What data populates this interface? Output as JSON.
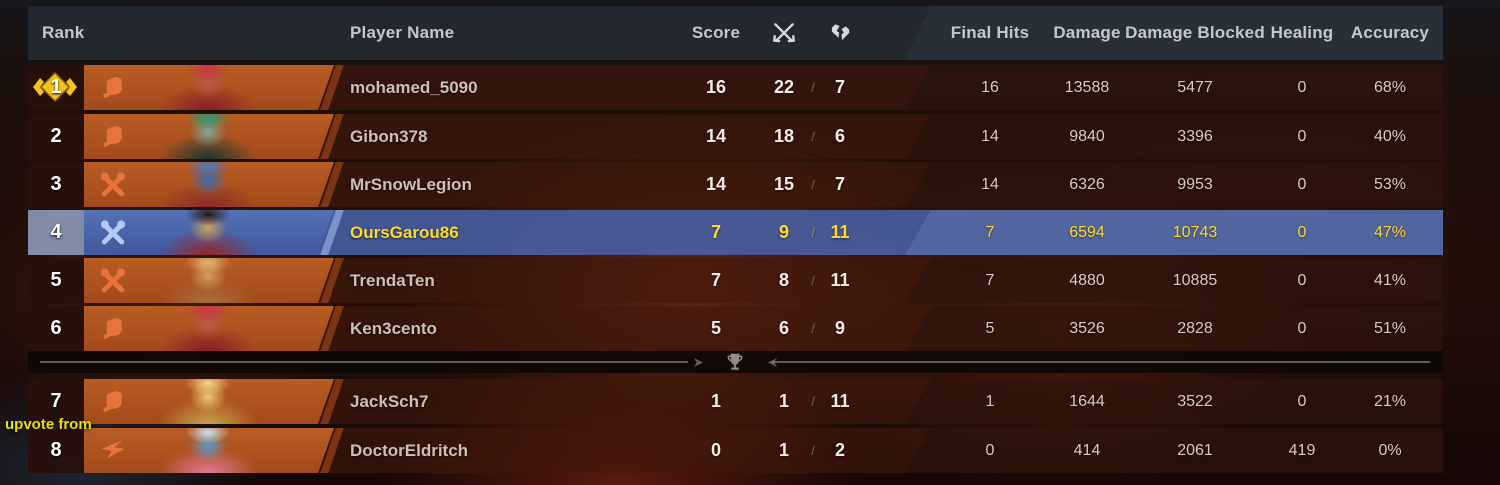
{
  "header": {
    "rank": "Rank",
    "player_name": "Player Name",
    "score": "Score",
    "kills_icon": "crossed-swords-icon",
    "deaths_icon": "broken-heart-icon",
    "final_hits": "Final Hits",
    "damage": "Damage",
    "damage_blocked": "Damage Blocked",
    "healing": "Healing",
    "accuracy": "Accuracy"
  },
  "kd_separator": "/",
  "divider": {
    "icon": "trophy-icon"
  },
  "overlay_text": "upvote from",
  "colors": {
    "header_bg": "#232830",
    "row_orange": "#b4551f",
    "row_brown_overlay": "#42180d",
    "highlight_row_blue": "#4c67a6",
    "highlight_text_yellow": "#ffd92e",
    "role_icon_orange": "#e8743c",
    "role_icon_blue": "#b7c9f5",
    "rank1_badge_gold": "#f2c41e",
    "caption_yellow": "#e9e000"
  },
  "table": {
    "rows": [
      {
        "rank": "1",
        "role": "duelist",
        "player": "mohamed_5090",
        "score": "16",
        "kills": "22",
        "deaths": "7",
        "final_hits": "16",
        "damage": "13588",
        "damage_blocked": "5477",
        "healing": "0",
        "accuracy": "68%",
        "highlighted": false,
        "portrait": [
          "#b65a48",
          "#8a1a28",
          "#c93646"
        ]
      },
      {
        "rank": "2",
        "role": "duelist",
        "player": "Gibon378",
        "score": "14",
        "kills": "18",
        "deaths": "6",
        "final_hits": "14",
        "damage": "9840",
        "damage_blocked": "3396",
        "healing": "0",
        "accuracy": "40%",
        "highlighted": false,
        "portrait": [
          "#7aa89a",
          "#143830",
          "#2a9a7a"
        ]
      },
      {
        "rank": "3",
        "role": "vanguard",
        "player": "MrSnowLegion",
        "score": "14",
        "kills": "15",
        "deaths": "7",
        "final_hits": "14",
        "damage": "6326",
        "damage_blocked": "9953",
        "healing": "0",
        "accuracy": "53%",
        "highlighted": false,
        "portrait": [
          "#3a6ab0",
          "#8a2a28",
          "#4a7ac0"
        ]
      },
      {
        "rank": "4",
        "role": "vanguard",
        "player": "OursGarou86",
        "score": "7",
        "kills": "9",
        "deaths": "11",
        "final_hits": "7",
        "damage": "6594",
        "damage_blocked": "10743",
        "healing": "0",
        "accuracy": "47%",
        "highlighted": true,
        "portrait": [
          "#caa05a",
          "#9a2424",
          "#2a1a14"
        ]
      },
      {
        "rank": "5",
        "role": "vanguard",
        "player": "TrendaTen",
        "score": "7",
        "kills": "8",
        "deaths": "11",
        "final_hits": "7",
        "damage": "4880",
        "damage_blocked": "10885",
        "healing": "0",
        "accuracy": "41%",
        "highlighted": false,
        "portrait": [
          "#d0a060",
          "#a87038",
          "#e0b878"
        ]
      },
      {
        "rank": "6",
        "role": "duelist",
        "player": "Ken3cento",
        "score": "5",
        "kills": "6",
        "deaths": "9",
        "final_hits": "5",
        "damage": "3526",
        "damage_blocked": "2828",
        "healing": "0",
        "accuracy": "51%",
        "highlighted": false,
        "portrait": [
          "#b65a48",
          "#8a1a28",
          "#c93646"
        ]
      },
      {
        "rank": "7",
        "role": "duelist",
        "player": "JackSch7",
        "score": "1",
        "kills": "1",
        "deaths": "11",
        "final_hits": "1",
        "damage": "1644",
        "damage_blocked": "3522",
        "healing": "0",
        "accuracy": "21%",
        "highlighted": false,
        "portrait": [
          "#e8ca70",
          "#caa84a",
          "#f0d888"
        ]
      },
      {
        "rank": "8",
        "role": "strategist",
        "player": "DoctorEldritch",
        "score": "0",
        "kills": "1",
        "deaths": "2",
        "final_hits": "0",
        "damage": "414",
        "damage_blocked": "2061",
        "healing": "419",
        "accuracy": "0%",
        "highlighted": false,
        "portrait": [
          "#5a9aca",
          "#e87a9a",
          "#cae4f0"
        ]
      }
    ]
  }
}
